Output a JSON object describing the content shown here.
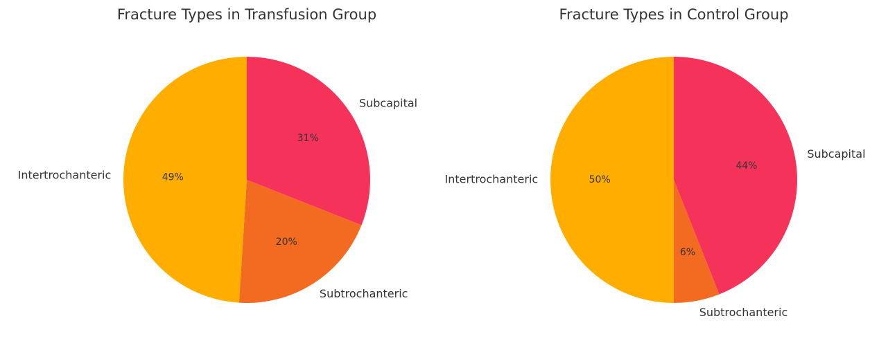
{
  "chart_data": [
    {
      "type": "pie",
      "title": "Fracture Types in Transfusion Group",
      "categories": [
        "Subcapital",
        "Subtrochanteric",
        "Intertrochanteric"
      ],
      "values": [
        31,
        20,
        49
      ],
      "value_labels": [
        "31%",
        "20%",
        "49%"
      ],
      "colors": [
        "#f5325a",
        "#f26b21",
        "#ffae00"
      ]
    },
    {
      "type": "pie",
      "title": "Fracture Types in Control Group",
      "categories": [
        "Subcapital",
        "Subtrochanteric",
        "Intertrochanteric"
      ],
      "values": [
        44,
        6,
        50
      ],
      "value_labels": [
        "44%",
        "6%",
        "50%"
      ],
      "colors": [
        "#f5325a",
        "#f26b21",
        "#ffae00"
      ]
    }
  ]
}
